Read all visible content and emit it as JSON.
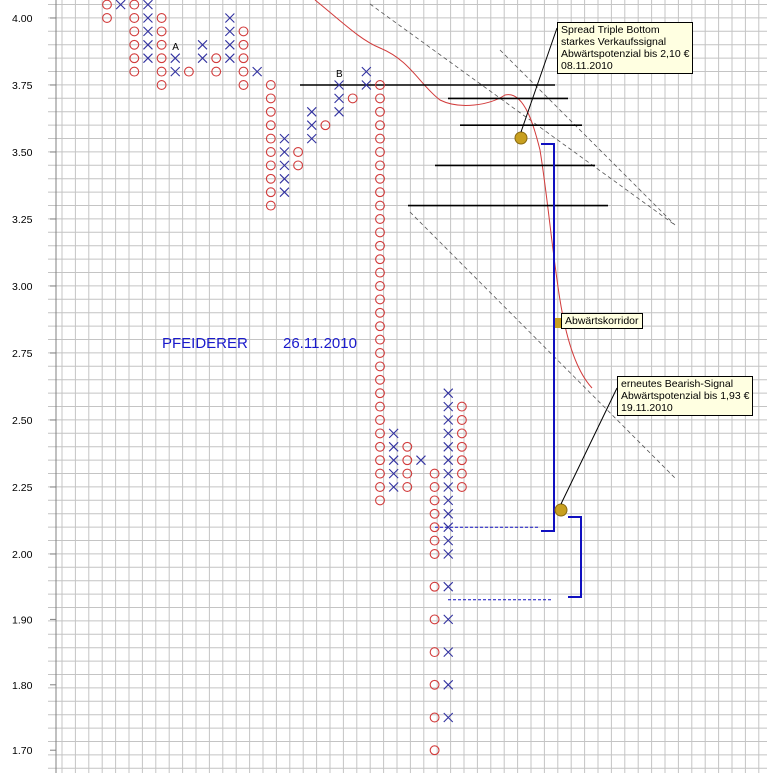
{
  "chart_data": {
    "type": "point-and-figure",
    "title": "PFEIDERER",
    "title_date": "26.11.2010",
    "y_tick_labels": [
      "4.00",
      "3.75",
      "3.50",
      "3.25",
      "3.00",
      "2.75",
      "2.50",
      "2.25",
      "2.00",
      "1.90",
      "1.80",
      "1.70"
    ],
    "box_size": 0.05,
    "grid": true,
    "colors": {
      "x": "#3232a0",
      "o": "#d23c3c",
      "channel": "#d23c3c",
      "target": "#1010c0",
      "support": "#000000",
      "marker": "#c8a020",
      "title": "#1a1acc"
    },
    "columns": [
      {
        "type": "O",
        "top": 4.05,
        "bottom": 4.0
      },
      {
        "type": "X",
        "top": 4.05,
        "bottom": 4.05
      },
      {
        "type": "O",
        "top": 4.05,
        "bottom": 3.8
      },
      {
        "type": "X",
        "top": 4.05,
        "bottom": 3.85
      },
      {
        "type": "O",
        "top": 4.0,
        "bottom": 3.75
      },
      {
        "type": "X",
        "top": 3.85,
        "bottom": 3.8,
        "label": "A"
      },
      {
        "type": "O",
        "top": 3.8,
        "bottom": 3.8
      },
      {
        "type": "X",
        "top": 3.9,
        "bottom": 3.85
      },
      {
        "type": "O",
        "top": 3.85,
        "bottom": 3.8
      },
      {
        "type": "X",
        "top": 4.0,
        "bottom": 3.85
      },
      {
        "type": "O",
        "top": 3.95,
        "bottom": 3.75
      },
      {
        "type": "X",
        "top": 3.8,
        "bottom": 3.8
      },
      {
        "type": "O",
        "top": 3.75,
        "bottom": 3.3
      },
      {
        "type": "X",
        "top": 3.55,
        "bottom": 3.35
      },
      {
        "type": "O",
        "top": 3.5,
        "bottom": 3.45
      },
      {
        "type": "X",
        "top": 3.65,
        "bottom": 3.55
      },
      {
        "type": "O",
        "top": 3.6,
        "bottom": 3.6
      },
      {
        "type": "X",
        "top": 3.75,
        "bottom": 3.65,
        "label": "B"
      },
      {
        "type": "O",
        "top": 3.7,
        "bottom": 3.7
      },
      {
        "type": "X",
        "top": 3.8,
        "bottom": 3.75
      },
      {
        "type": "O",
        "top": 3.75,
        "bottom": 2.2
      },
      {
        "type": "X",
        "top": 2.45,
        "bottom": 2.25
      },
      {
        "type": "O",
        "top": 2.4,
        "bottom": 2.25
      },
      {
        "type": "X",
        "top": 2.35,
        "bottom": 2.35
      },
      {
        "type": "O",
        "top": 2.3,
        "bottom": 1.7
      },
      {
        "type": "X",
        "top": 2.6,
        "bottom": 1.75
      },
      {
        "type": "O",
        "top": 2.55,
        "bottom": 2.25
      }
    ],
    "support_lines": [
      3.75,
      3.7,
      3.6,
      3.45,
      3.3
    ],
    "dashed_targets": [
      2.1,
      1.93
    ],
    "callouts": [
      {
        "lines": [
          "Spread Triple Bottom",
          "starkes Verkaufssignal",
          "Abwärtspotenzial bis 2,10 €",
          "08.11.2010"
        ]
      },
      {
        "lines": [
          "Abwärtskorridor"
        ]
      },
      {
        "lines": [
          "erneutes Bearish-Signal",
          "Abwärtspotenzial bis 1,93 €",
          "19.11.2010"
        ]
      }
    ]
  }
}
